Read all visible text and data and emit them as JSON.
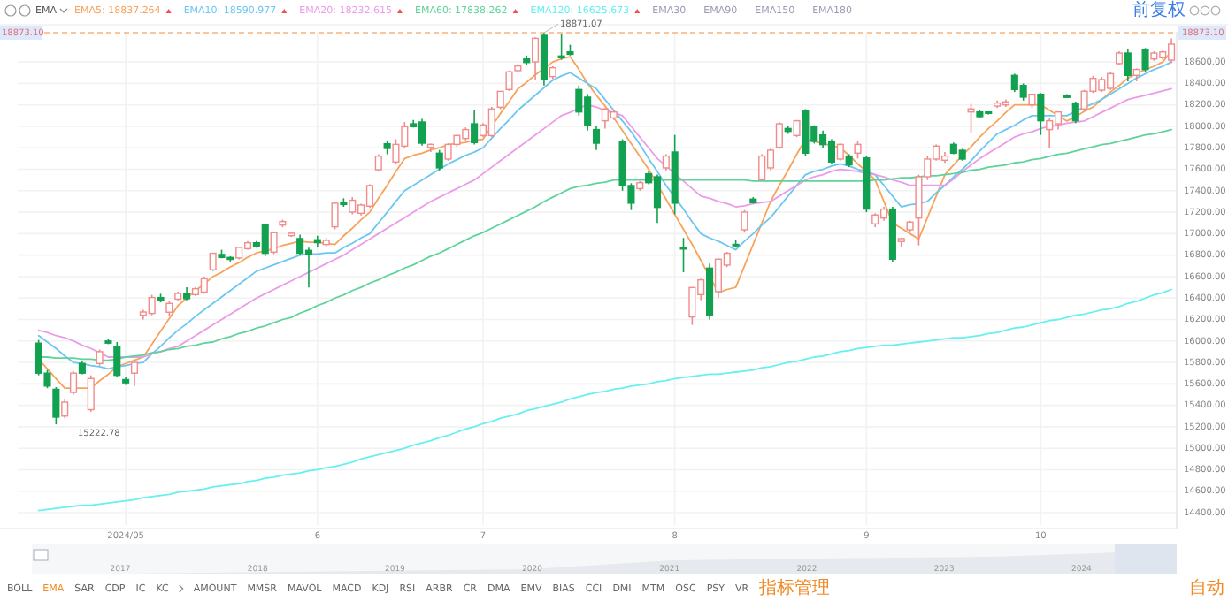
{
  "chart_data": {
    "type": "candlestick",
    "categories": [
      null,
      null,
      null,
      null,
      null,
      null,
      null,
      null,
      null,
      null,
      "2024/05",
      null,
      null,
      null,
      null,
      null,
      null,
      null,
      null,
      null,
      null,
      null,
      null,
      null,
      null,
      null,
      null,
      null,
      null,
      null,
      null,
      null,
      "6",
      null,
      null,
      null,
      null,
      null,
      null,
      null,
      null,
      null,
      null,
      null,
      null,
      null,
      null,
      null,
      null,
      null,
      null,
      "7",
      null,
      null,
      null,
      null,
      null,
      null,
      null,
      null,
      null,
      null,
      null,
      null,
      null,
      null,
      null,
      null,
      null,
      null,
      null,
      null,
      null,
      "8",
      null,
      null,
      null,
      null,
      null,
      null,
      null,
      null,
      null,
      null,
      null,
      null,
      null,
      null,
      null,
      null,
      null,
      null,
      null,
      null,
      null,
      "9",
      null,
      null,
      null,
      null,
      null,
      null,
      null,
      null,
      null,
      null,
      null,
      null,
      null,
      null,
      null,
      null,
      null,
      null,
      null,
      "10",
      null,
      null,
      null,
      null,
      null,
      null,
      null,
      null,
      null,
      null,
      null,
      null,
      null,
      null,
      null
    ],
    "ohlc": [
      [
        15980,
        16010,
        15680,
        15700
      ],
      [
        15700,
        15730,
        15560,
        15580
      ],
      [
        15550,
        15570,
        15222.78,
        15290
      ],
      [
        15300,
        15460,
        15280,
        15430
      ],
      [
        15520,
        15720,
        15500,
        15700
      ],
      [
        15790,
        15810,
        15690,
        15700
      ],
      [
        15360,
        15680,
        15340,
        15650
      ],
      [
        15790,
        15920,
        15770,
        15900
      ],
      [
        16000,
        16020,
        15970,
        15980
      ],
      [
        15950,
        15990,
        15660,
        15680
      ],
      [
        15640,
        15660,
        15590,
        15610
      ],
      [
        15700,
        15820,
        15580,
        15800
      ],
      [
        16240,
        16290,
        16200,
        16270
      ],
      [
        16257,
        16430,
        16240,
        16405
      ],
      [
        16405,
        16440,
        16360,
        16378
      ],
      [
        16268,
        16370,
        16230,
        16350
      ],
      [
        16390,
        16460,
        16370,
        16443
      ],
      [
        16443,
        16500,
        16380,
        16394
      ],
      [
        16432,
        16500,
        16420,
        16487
      ],
      [
        16455,
        16600,
        16440,
        16580
      ],
      [
        16663,
        16817,
        16650,
        16817
      ],
      [
        16806,
        16850,
        16770,
        16778
      ],
      [
        16778,
        16790,
        16740,
        16760
      ],
      [
        16773,
        16880,
        16760,
        16872
      ],
      [
        16860,
        16930,
        16850,
        16915
      ],
      [
        16915,
        16930,
        16870,
        16882
      ],
      [
        17080,
        17090,
        16790,
        16817
      ],
      [
        16828,
        17020,
        16810,
        17009
      ],
      [
        17080,
        17130,
        17060,
        17113
      ],
      [
        16981,
        17010,
        16970,
        17004
      ],
      [
        16954,
        16990,
        16800,
        16817
      ],
      [
        16844,
        16870,
        16498,
        16806
      ],
      [
        16943,
        16980,
        16880,
        16916
      ],
      [
        16899,
        16960,
        16880,
        16938
      ],
      [
        17064,
        17300,
        17040,
        17284
      ],
      [
        17294,
        17330,
        17250,
        17272
      ],
      [
        17201,
        17340,
        17180,
        17311
      ],
      [
        17190,
        17280,
        17170,
        17267
      ],
      [
        17256,
        17460,
        17240,
        17448
      ],
      [
        17596,
        17740,
        17580,
        17722
      ],
      [
        17838,
        17860,
        17740,
        17794
      ],
      [
        17668,
        17880,
        17650,
        17832
      ],
      [
        17816,
        18040,
        17800,
        17997
      ],
      [
        18024,
        18060,
        17990,
        17997
      ],
      [
        18041,
        18070,
        17820,
        17843
      ],
      [
        17805,
        17840,
        17760,
        17832
      ],
      [
        17750,
        17780,
        17590,
        17613
      ],
      [
        17695,
        17840,
        17680,
        17832
      ],
      [
        17832,
        17920,
        17810,
        17915
      ],
      [
        17887,
        17990,
        17870,
        17970
      ],
      [
        18024,
        18150,
        17830,
        17849
      ],
      [
        17915,
        18030,
        17900,
        18013
      ],
      [
        17914,
        18180,
        17900,
        18162
      ],
      [
        18178,
        18330,
        18160,
        18326
      ],
      [
        18343,
        18520,
        18330,
        18508
      ],
      [
        18519,
        18580,
        18500,
        18563
      ],
      [
        18628,
        18660,
        18570,
        18595
      ],
      [
        18601,
        18830,
        18436,
        18820
      ],
      [
        18848,
        18871.07,
        18380,
        18436
      ],
      [
        18464,
        18560,
        18440,
        18546
      ],
      [
        18656,
        18860,
        18620,
        18640
      ],
      [
        18694,
        18760,
        18660,
        18672
      ],
      [
        18343,
        18380,
        18100,
        18134
      ],
      [
        18272,
        18300,
        17960,
        18008
      ],
      [
        17970,
        18000,
        17780,
        17843
      ],
      [
        18052,
        18170,
        17980,
        18162
      ],
      [
        18079,
        18150,
        18060,
        18134
      ],
      [
        17860,
        17880,
        17400,
        17448
      ],
      [
        17448,
        17470,
        17220,
        17284
      ],
      [
        17420,
        17490,
        17400,
        17475
      ],
      [
        17558,
        17580,
        17460,
        17475
      ],
      [
        17530,
        17550,
        17100,
        17245
      ],
      [
        17613,
        17740,
        17590,
        17723
      ],
      [
        17761,
        17920,
        17180,
        17284
      ],
      [
        16870,
        16960,
        16640,
        16860
      ],
      [
        16224,
        16500,
        16150,
        16498
      ],
      [
        16432,
        16580,
        16380,
        16570
      ],
      [
        16679,
        16720,
        16200,
        16240
      ],
      [
        16460,
        16770,
        16400,
        16762
      ],
      [
        16707,
        16830,
        16690,
        16817
      ],
      [
        16900,
        16940,
        16870,
        16888
      ],
      [
        17036,
        17220,
        17010,
        17201
      ],
      [
        17322,
        17340,
        17280,
        17289
      ],
      [
        17503,
        17740,
        17490,
        17723
      ],
      [
        17613,
        17800,
        17590,
        17778
      ],
      [
        17805,
        18040,
        17790,
        18024
      ],
      [
        17980,
        18000,
        17930,
        17953
      ],
      [
        17915,
        18060,
        17900,
        18052
      ],
      [
        18145,
        18160,
        17720,
        17750
      ],
      [
        17997,
        18010,
        17840,
        17860
      ],
      [
        17920,
        17960,
        17800,
        17830
      ],
      [
        17860,
        17880,
        17650,
        17668
      ],
      [
        17695,
        17840,
        17680,
        17832
      ],
      [
        17723,
        17740,
        17620,
        17641
      ],
      [
        17750,
        17860,
        17700,
        17832
      ],
      [
        17706,
        17720,
        17200,
        17229
      ],
      [
        17091,
        17190,
        17060,
        17174
      ],
      [
        17146,
        17250,
        17120,
        17229
      ],
      [
        17229,
        17250,
        16740,
        16762
      ],
      [
        16927,
        16960,
        16880,
        16954
      ],
      [
        17036,
        17120,
        17010,
        17108
      ],
      [
        17146,
        17550,
        16890,
        17530
      ],
      [
        17530,
        17720,
        17500,
        17695
      ],
      [
        17695,
        17830,
        17680,
        17816
      ],
      [
        17684,
        17760,
        17660,
        17723
      ],
      [
        17832,
        17850,
        17740,
        17750
      ],
      [
        17777,
        17790,
        17680,
        17695
      ],
      [
        18134,
        18210,
        17940,
        18162
      ],
      [
        18134,
        18150,
        18080,
        18091
      ],
      [
        18134,
        18140,
        18110,
        18123
      ],
      [
        18189,
        18240,
        18170,
        18217
      ],
      [
        18200,
        18250,
        18180,
        18228
      ],
      [
        18475,
        18490,
        18320,
        18343
      ],
      [
        18381,
        18400,
        18240,
        18272
      ],
      [
        18200,
        18300,
        18170,
        18299
      ],
      [
        18299,
        18310,
        17920,
        18052
      ],
      [
        17970,
        18080,
        17800,
        18052
      ],
      [
        18024,
        18140,
        17970,
        18134
      ],
      [
        18283,
        18300,
        18270,
        18280
      ],
      [
        18217,
        18230,
        18030,
        18052
      ],
      [
        18162,
        18340,
        18140,
        18327
      ],
      [
        18327,
        18470,
        18310,
        18447
      ],
      [
        18337,
        18460,
        18320,
        18436
      ],
      [
        18354,
        18510,
        18340,
        18491
      ],
      [
        18585,
        18700,
        18570,
        18683
      ],
      [
        18683,
        18720,
        18420,
        18475
      ],
      [
        18475,
        18540,
        18420,
        18530
      ],
      [
        18711,
        18730,
        18510,
        18530
      ],
      [
        18628,
        18700,
        18610,
        18683
      ],
      [
        18640,
        18710,
        18620,
        18694
      ],
      [
        18617,
        18820,
        18590,
        18766
      ]
    ],
    "series": [
      {
        "name": "EMA5: 18837.264",
        "color": "#f7a35c",
        "type": "line",
        "values": [
          15830,
          15740,
          15650,
          15560,
          15560,
          15560,
          15560,
          15630,
          15690,
          15760,
          15790,
          15820,
          15850,
          15970,
          16090,
          16210,
          16330,
          16400,
          16470,
          16530,
          16600,
          16640,
          16690,
          16730,
          16780,
          16820,
          16840,
          16860,
          16890,
          16910,
          16930,
          16920,
          16920,
          16910,
          16900,
          16980,
          17050,
          17130,
          17200,
          17330,
          17450,
          17580,
          17700,
          17730,
          17750,
          17780,
          17800,
          17830,
          17840,
          17850,
          17870,
          17880,
          18000,
          18120,
          18230,
          18350,
          18410,
          18480,
          18540,
          18600,
          18630,
          18650,
          18530,
          18400,
          18290,
          18190,
          18080,
          17960,
          17840,
          17720,
          17600,
          17460,
          17320,
          17180,
          17040,
          16900,
          16750,
          16600,
          16450,
          16480,
          16500,
          16700,
          16900,
          17100,
          17300,
          17450,
          17590,
          17740,
          17880,
          17860,
          17840,
          17820,
          17800,
          17730,
          17650,
          17580,
          17500,
          17300,
          17100,
          17050,
          17000,
          16950,
          17150,
          17350,
          17550,
          17640,
          17730,
          17810,
          17900,
          17980,
          18050,
          18130,
          18200,
          18200,
          18200,
          18200,
          18150,
          18100,
          18050,
          18090,
          18140,
          18180,
          18250,
          18320,
          18380,
          18450,
          18490,
          18530,
          18560,
          18600,
          18700
        ]
      },
      {
        "name": "EMA10: 18590.977",
        "color": "#6cc7f0",
        "type": "line",
        "values": [
          16050,
          15990,
          15930,
          15860,
          15800,
          15790,
          15770,
          15760,
          15740,
          15760,
          15770,
          15790,
          15800,
          15880,
          15950,
          16030,
          16100,
          16160,
          16230,
          16290,
          16350,
          16410,
          16470,
          16530,
          16590,
          16650,
          16680,
          16710,
          16740,
          16770,
          16800,
          16810,
          16810,
          16820,
          16820,
          16870,
          16910,
          16960,
          17000,
          17100,
          17200,
          17300,
          17400,
          17450,
          17500,
          17550,
          17600,
          17650,
          17690,
          17730,
          17760,
          17800,
          17890,
          17980,
          18060,
          18150,
          18220,
          18290,
          18360,
          18430,
          18470,
          18500,
          18450,
          18400,
          18350,
          18250,
          18150,
          18050,
          17950,
          17830,
          17700,
          17580,
          17450,
          17340,
          17230,
          17110,
          17000,
          16960,
          16930,
          16890,
          16850,
          16930,
          17000,
          17080,
          17150,
          17250,
          17350,
          17450,
          17550,
          17580,
          17600,
          17630,
          17650,
          17630,
          17600,
          17580,
          17550,
          17450,
          17350,
          17250,
          17270,
          17280,
          17300,
          17380,
          17450,
          17530,
          17600,
          17680,
          17770,
          17850,
          17930,
          17970,
          18010,
          18060,
          18100,
          18100,
          18100,
          18100,
          18100,
          18140,
          18180,
          18210,
          18250,
          18300,
          18350,
          18400,
          18450,
          18490,
          18530,
          18560,
          18600
        ]
      },
      {
        "name": "EMA20: 18232.615",
        "color": "#eb9be8",
        "type": "line",
        "values": [
          16100,
          16080,
          16050,
          16030,
          16000,
          15960,
          15930,
          15890,
          15850,
          15850,
          15850,
          15850,
          15850,
          15880,
          15900,
          15930,
          15950,
          16000,
          16050,
          16100,
          16150,
          16200,
          16250,
          16300,
          16350,
          16400,
          16440,
          16480,
          16520,
          16560,
          16600,
          16640,
          16680,
          16720,
          16760,
          16800,
          16850,
          16900,
          16950,
          17000,
          17050,
          17100,
          17150,
          17200,
          17250,
          17300,
          17340,
          17380,
          17420,
          17460,
          17500,
          17560,
          17620,
          17680,
          17740,
          17800,
          17860,
          17920,
          17980,
          18040,
          18100,
          18130,
          18170,
          18200,
          18180,
          18150,
          18130,
          18100,
          18000,
          17900,
          17800,
          17700,
          17630,
          17560,
          17490,
          17420,
          17350,
          17330,
          17300,
          17280,
          17250,
          17260,
          17280,
          17290,
          17300,
          17350,
          17400,
          17450,
          17500,
          17530,
          17550,
          17580,
          17600,
          17590,
          17580,
          17560,
          17550,
          17530,
          17500,
          17480,
          17450,
          17450,
          17450,
          17450,
          17450,
          17510,
          17580,
          17640,
          17700,
          17750,
          17800,
          17850,
          17900,
          17930,
          17950,
          17980,
          18000,
          18010,
          18030,
          18040,
          18050,
          18090,
          18130,
          18170,
          18210,
          18250,
          18270,
          18290,
          18310,
          18330,
          18350
        ]
      },
      {
        "name": "EMA60: 17838.262",
        "color": "#5fd39a",
        "type": "line",
        "values": [
          15850,
          15850,
          15840,
          15840,
          15840,
          15830,
          15830,
          15820,
          15820,
          15830,
          15850,
          15860,
          15870,
          15890,
          15900,
          15920,
          15930,
          15950,
          15960,
          15980,
          15990,
          16020,
          16040,
          16070,
          16090,
          16120,
          16140,
          16170,
          16200,
          16220,
          16260,
          16290,
          16330,
          16360,
          16400,
          16430,
          16470,
          16500,
          16540,
          16570,
          16610,
          16640,
          16680,
          16710,
          16750,
          16790,
          16820,
          16860,
          16900,
          16940,
          16980,
          17010,
          17050,
          17090,
          17130,
          17170,
          17210,
          17250,
          17300,
          17340,
          17380,
          17420,
          17440,
          17450,
          17470,
          17480,
          17500,
          17500,
          17500,
          17500,
          17500,
          17500,
          17500,
          17500,
          17500,
          17500,
          17500,
          17500,
          17500,
          17500,
          17500,
          17500,
          17490,
          17490,
          17490,
          17490,
          17490,
          17490,
          17490,
          17490,
          17490,
          17490,
          17490,
          17490,
          17490,
          17490,
          17500,
          17500,
          17510,
          17520,
          17520,
          17530,
          17540,
          17540,
          17550,
          17560,
          17570,
          17590,
          17600,
          17620,
          17630,
          17640,
          17660,
          17670,
          17690,
          17700,
          17720,
          17740,
          17750,
          17770,
          17790,
          17810,
          17830,
          17840,
          17860,
          17880,
          17900,
          17920,
          17930,
          17950,
          17970
        ]
      },
      {
        "name": "EMA120: 16625.673",
        "color": "#66f0f0",
        "type": "line",
        "values": [
          14420,
          14430,
          14440,
          14450,
          14460,
          14470,
          14470,
          14480,
          14490,
          14500,
          14510,
          14520,
          14540,
          14550,
          14560,
          14570,
          14590,
          14600,
          14610,
          14620,
          14640,
          14650,
          14660,
          14670,
          14690,
          14700,
          14720,
          14730,
          14750,
          14760,
          14770,
          14790,
          14800,
          14820,
          14830,
          14850,
          14870,
          14900,
          14920,
          14940,
          14960,
          14980,
          15000,
          15030,
          15050,
          15070,
          15100,
          15120,
          15150,
          15180,
          15200,
          15230,
          15250,
          15280,
          15300,
          15320,
          15350,
          15370,
          15390,
          15410,
          15430,
          15460,
          15480,
          15500,
          15520,
          15530,
          15550,
          15560,
          15580,
          15590,
          15600,
          15620,
          15630,
          15650,
          15660,
          15670,
          15680,
          15690,
          15690,
          15700,
          15710,
          15720,
          15730,
          15750,
          15760,
          15780,
          15800,
          15810,
          15830,
          15850,
          15860,
          15880,
          15900,
          15910,
          15930,
          15940,
          15950,
          15960,
          15960,
          15970,
          15980,
          15990,
          16000,
          16010,
          16020,
          16030,
          16030,
          16040,
          16050,
          16070,
          16080,
          16100,
          16120,
          16130,
          16150,
          16170,
          16190,
          16200,
          16220,
          16240,
          16250,
          16270,
          16290,
          16300,
          16320,
          16350,
          16370,
          16400,
          16430,
          16450,
          16480
        ]
      }
    ],
    "ylim": [
      14285,
      18881
    ],
    "yticks": [
      {
        "value": 14400,
        "label": "14400.00"
      },
      {
        "value": 14600,
        "label": "14600.00"
      },
      {
        "value": 14800,
        "label": "14800.00"
      },
      {
        "value": 15000,
        "label": "15000.00"
      },
      {
        "value": 15200,
        "label": "15200.00"
      },
      {
        "value": 15400,
        "label": "15400.00"
      },
      {
        "value": 15600,
        "label": "15600.00"
      },
      {
        "value": 15800,
        "label": "15800.00"
      },
      {
        "value": 16000,
        "label": "16000.00"
      },
      {
        "value": 16200,
        "label": "16200.00"
      },
      {
        "value": 16400,
        "label": "16400.00"
      },
      {
        "value": 16600,
        "label": "16600.00"
      },
      {
        "value": 16800,
        "label": "16800.00"
      },
      {
        "value": 17000,
        "label": "17000.00"
      },
      {
        "value": 17200,
        "label": "17200.00"
      },
      {
        "value": 17400,
        "label": "17400.00"
      },
      {
        "value": 17600,
        "label": "17600.00"
      },
      {
        "value": 17800,
        "label": "17800.00"
      },
      {
        "value": 18000,
        "label": "18000.00"
      },
      {
        "value": 18200,
        "label": "18200.00"
      },
      {
        "value": 18400,
        "label": "18400.00"
      },
      {
        "value": 18600,
        "label": "18600.00"
      }
    ],
    "grid": true,
    "legend": "top left",
    "ref_lines": [
      {
        "axis": "y",
        "value": 18873.1,
        "label": "18873.10",
        "color": "#f9b27a",
        "line_style": "dashed"
      }
    ],
    "annotations": [
      "EMA",
      "EMA30",
      "EMA90",
      "EMA150",
      "EMA180",
      "前复权",
      "2017",
      "2018",
      "2019",
      "2020",
      "2021",
      "2022",
      "2023",
      "2024",
      "BOLL",
      "EMA",
      "SAR",
      "CDP",
      "IC",
      "KC",
      "AMOUNT",
      "MMSR",
      "MAVOL",
      "MACD",
      "KDJ",
      "RSI",
      "ARBR",
      "CR",
      "DMA",
      "EMV",
      "BIAS",
      "CCI",
      "DMI",
      "MTM",
      "OSC",
      "PSY",
      "VR",
      "指标管理",
      "自动",
      "15222.78",
      {
        "text": "18871.07",
        "y": 18871.07
      }
    ]
  }
}
